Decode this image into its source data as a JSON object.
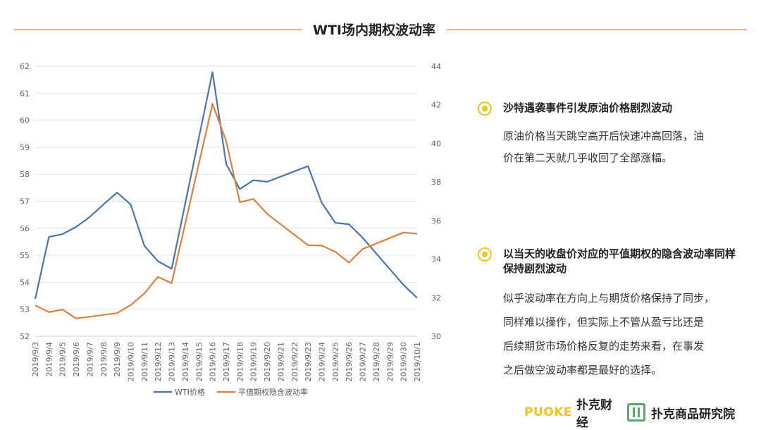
{
  "title": "WTI场内期权波动率",
  "chart_data": {
    "type": "line",
    "categories": [
      "2019/9/3",
      "2019/9/4",
      "2019/9/5",
      "2019/9/6",
      "2019/9/7",
      "2019/9/8",
      "2019/9/9",
      "2019/9/10",
      "2019/9/11",
      "2019/9/12",
      "2019/9/13",
      "2019/9/14",
      "2019/9/15",
      "2019/9/16",
      "2019/9/17",
      "2019/9/18",
      "2019/9/19",
      "2019/9/20",
      "2019/9/21",
      "2019/9/22",
      "2019/9/23",
      "2019/9/24",
      "2019/9/25",
      "2019/9/26",
      "2019/9/27",
      "2019/9/28",
      "2019/9/29",
      "2019/9/30",
      "2019/10/1"
    ],
    "series": [
      {
        "name": "WTI价格",
        "axis": "left",
        "color": "#4a74b0",
        "values": [
          53.38,
          55.68,
          55.78,
          56.05,
          56.42,
          56.88,
          57.32,
          56.88,
          55.35,
          54.78,
          54.5,
          null,
          null,
          61.78,
          58.38,
          57.45,
          57.78,
          57.72,
          null,
          null,
          58.3,
          56.95,
          56.2,
          56.15,
          55.65,
          null,
          null,
          53.9,
          53.42
        ]
      },
      {
        "name": "平值期权隐含波动率",
        "axis": "right",
        "color": "#e0803a",
        "values": [
          31.6,
          31.25,
          31.38,
          30.92,
          null,
          null,
          31.2,
          31.62,
          32.22,
          33.08,
          32.75,
          null,
          null,
          42.05,
          40.12,
          36.95,
          37.12,
          36.35,
          null,
          null,
          34.72,
          34.7,
          34.38,
          33.82,
          34.52,
          null,
          null,
          35.38,
          35.32
        ]
      }
    ],
    "y_left": {
      "min": 52,
      "max": 62,
      "ticks": [
        52,
        53,
        54,
        55,
        56,
        57,
        58,
        59,
        60,
        61,
        62
      ]
    },
    "y_right": {
      "min": 30,
      "max": 44,
      "ticks": [
        30,
        32,
        34,
        36,
        38,
        40,
        42,
        44
      ]
    },
    "grid": true,
    "legend_position": "bottom"
  },
  "notes": [
    {
      "heading": "沙特遇袭事件引发原油价格剧烈波动",
      "body": "原油价格当天跳空高开后快速冲高回落，油\n价在第二天就几乎收回了全部涨幅。"
    },
    {
      "heading": "以当天的收盘价对应的平值期权的隐含波动率同样保持剧烈波动",
      "body": "似乎波动率在方向上与期货价格保持了同步，\n同样难以操作，但实际上不管从盈亏比还是\n后续期货市场价格反复的走势来看，在事发\n之后做空波动率都是最好的选择。"
    }
  ],
  "footer": {
    "brand_en": "PUOKE",
    "brand_cn": "扑克财经",
    "research": "扑克商品研究院"
  }
}
